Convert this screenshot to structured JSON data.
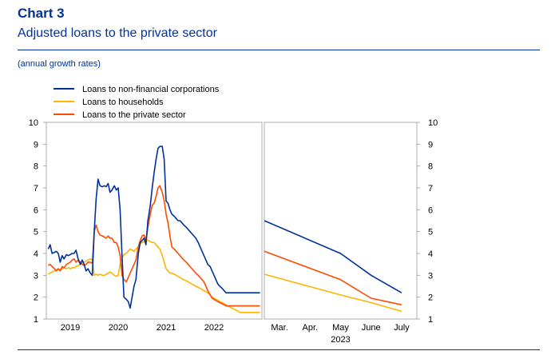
{
  "header": {
    "chart_number": "Chart 3",
    "title": "Adjusted loans to the private sector",
    "subtitle": "(annual growth rates)"
  },
  "chart_data": {
    "type": "line",
    "ylim": [
      1,
      10
    ],
    "yticks": [
      "1",
      "2",
      "3",
      "4",
      "5",
      "6",
      "7",
      "8",
      "9",
      "10"
    ],
    "legend_position": "top-left",
    "series": [
      {
        "name": "Loans to non-financial corporations",
        "color": "#003299"
      },
      {
        "name": "Loans to households",
        "color": "#FFB400"
      },
      {
        "name": "Loans to the private sector",
        "color": "#FF4B00"
      }
    ],
    "historical": {
      "x_start": 2018.5,
      "x_end": 2023.0,
      "xticks": [
        {
          "x": 2019.0,
          "label": "2019"
        },
        {
          "x": 2020.0,
          "label": "2020"
        },
        {
          "x": 2021.0,
          "label": "2021"
        },
        {
          "x": 2022.0,
          "label": "2022"
        }
      ],
      "x": [
        2018.54,
        2018.58,
        2018.62,
        2018.67,
        2018.71,
        2018.75,
        2018.79,
        2018.83,
        2018.87,
        2018.92,
        2018.96,
        2019.0,
        2019.04,
        2019.08,
        2019.12,
        2019.17,
        2019.21,
        2019.25,
        2019.29,
        2019.33,
        2019.37,
        2019.42,
        2019.46,
        2019.5,
        2019.54,
        2019.58,
        2019.62,
        2019.67,
        2019.71,
        2019.75,
        2019.79,
        2019.83,
        2019.87,
        2019.92,
        2019.96,
        2020.0,
        2020.04,
        2020.08,
        2020.12,
        2020.17,
        2020.21,
        2020.25,
        2020.29,
        2020.33,
        2020.37,
        2020.42,
        2020.46,
        2020.5,
        2020.54,
        2020.58,
        2020.62,
        2020.67,
        2020.71,
        2020.75,
        2020.79,
        2020.83,
        2020.87,
        2020.92,
        2020.96,
        2021.0,
        2021.04,
        2021.08,
        2021.12,
        2021.17,
        2021.21,
        2021.25,
        2021.29,
        2021.33,
        2021.37,
        2021.42,
        2021.46,
        2021.5,
        2021.54,
        2021.58,
        2021.62,
        2021.67,
        2021.71,
        2021.75,
        2021.79,
        2021.83,
        2021.87,
        2021.92,
        2021.96,
        2022.0,
        2022.04,
        2022.08,
        2022.12,
        2022.17,
        2022.21,
        2022.25,
        2022.29,
        2022.33,
        2022.37,
        2022.42,
        2022.46,
        2022.5,
        2022.54,
        2022.58,
        2022.62,
        2022.67,
        2022.71,
        2022.75,
        2022.79,
        2022.83,
        2022.87,
        2022.92,
        2022.96
      ],
      "nfc": [
        4.2,
        4.4,
        4.0,
        4.05,
        4.1,
        4.0,
        3.6,
        3.9,
        3.75,
        3.95,
        3.9,
        3.95,
        4.0,
        4.0,
        4.15,
        3.7,
        3.5,
        3.7,
        3.5,
        3.2,
        3.3,
        3.1,
        3.0,
        5.0,
        6.5,
        7.4,
        7.1,
        7.05,
        7.1,
        7.05,
        7.2,
        6.8,
        6.9,
        7.1,
        6.9,
        7.0,
        6.0,
        3.9,
        2.0,
        1.9,
        1.8,
        1.5,
        2.0,
        2.5,
        2.8,
        4.0,
        4.5,
        4.6,
        4.7,
        4.4,
        5.5,
        6.2,
        7.0,
        7.7,
        8.3,
        8.8,
        8.9,
        8.9,
        8.3,
        6.4,
        6.3,
        6.0,
        5.8,
        5.7,
        5.6,
        5.5,
        5.5,
        5.4,
        5.3,
        5.2,
        5.1,
        5.0,
        4.9,
        4.8,
        4.7,
        4.5,
        4.3,
        4.1,
        3.9,
        3.7,
        3.5,
        3.4,
        3.2,
        3.0,
        2.8,
        2.6,
        2.5,
        2.4,
        2.3,
        2.2,
        2.2,
        2.2,
        2.2,
        2.2,
        2.2,
        2.2,
        2.2,
        2.2,
        2.2,
        2.2,
        2.2,
        2.2,
        2.2,
        2.2,
        2.2,
        2.2,
        2.2
      ],
      "hh": [
        3.05,
        3.1,
        3.15,
        3.2,
        3.25,
        3.3,
        3.25,
        3.3,
        3.35,
        3.3,
        3.35,
        3.3,
        3.35,
        3.35,
        3.4,
        3.45,
        3.5,
        3.55,
        3.6,
        3.65,
        3.7,
        3.75,
        3.7,
        3.0,
        3.05,
        3.0,
        3.05,
        3.0,
        3.0,
        3.05,
        3.1,
        3.15,
        3.1,
        3.0,
        2.95,
        3.0,
        3.5,
        3.8,
        3.95,
        4.0,
        4.1,
        4.2,
        4.15,
        4.1,
        4.2,
        4.3,
        4.45,
        4.5,
        4.55,
        4.6,
        4.6,
        4.55,
        4.5,
        4.5,
        4.4,
        4.3,
        4.2,
        3.9,
        3.6,
        3.3,
        3.2,
        3.1,
        3.1,
        3.05,
        3.0,
        2.95,
        2.9,
        2.85,
        2.8,
        2.75,
        2.7,
        2.65,
        2.6,
        2.55,
        2.5,
        2.45,
        2.4,
        2.35,
        2.3,
        2.25,
        2.2,
        2.1,
        2.0,
        1.95,
        1.9,
        1.85,
        1.8,
        1.75,
        1.7,
        1.65,
        1.6,
        1.55,
        1.5,
        1.45,
        1.4,
        1.35,
        1.3,
        1.3,
        1.3,
        1.3,
        1.3,
        1.3,
        1.3,
        1.3,
        1.3,
        1.3,
        1.3
      ],
      "pvt": [
        3.45,
        3.5,
        3.4,
        3.3,
        3.2,
        3.3,
        3.2,
        3.4,
        3.35,
        3.5,
        3.55,
        3.6,
        3.7,
        3.75,
        3.6,
        3.7,
        3.6,
        3.5,
        3.45,
        3.5,
        3.6,
        3.6,
        3.55,
        5.0,
        5.3,
        5.0,
        4.85,
        4.8,
        4.75,
        4.7,
        4.8,
        4.7,
        4.7,
        4.5,
        4.5,
        4.3,
        3.9,
        3.0,
        2.8,
        2.7,
        2.9,
        3.1,
        3.3,
        3.5,
        3.7,
        4.3,
        4.6,
        4.8,
        4.85,
        4.6,
        5.2,
        5.8,
        6.2,
        6.3,
        6.6,
        7.0,
        7.1,
        6.8,
        6.4,
        5.8,
        5.4,
        4.8,
        4.3,
        4.2,
        4.1,
        4.0,
        3.9,
        3.8,
        3.7,
        3.6,
        3.5,
        3.4,
        3.3,
        3.2,
        3.1,
        3.0,
        2.9,
        2.8,
        2.7,
        2.5,
        2.3,
        2.1,
        1.95,
        1.9,
        1.85,
        1.8,
        1.75,
        1.7,
        1.65,
        1.6,
        1.6,
        1.6,
        1.6,
        1.6,
        1.6,
        1.6,
        1.6,
        1.6,
        1.6,
        1.6,
        1.6,
        1.6,
        1.6,
        1.6,
        1.6,
        1.6,
        1.6
      ]
    },
    "projection": {
      "x_start": 0,
      "x_end": 5,
      "xticks": [
        {
          "x": 0.5,
          "label": "Mar."
        },
        {
          "x": 1.5,
          "label": "Apr."
        },
        {
          "x": 2.5,
          "label": "May"
        },
        {
          "x": 3.5,
          "label": "June"
        },
        {
          "x": 4.5,
          "label": "July"
        }
      ],
      "year_label": "2023",
      "x": [
        0.0,
        2.5,
        3.5,
        4.5
      ],
      "nfc": [
        5.5,
        4.0,
        3.0,
        2.2
      ],
      "hh": [
        3.05,
        2.1,
        1.75,
        1.35
      ],
      "pvt": [
        4.1,
        2.8,
        1.95,
        1.65
      ]
    }
  }
}
